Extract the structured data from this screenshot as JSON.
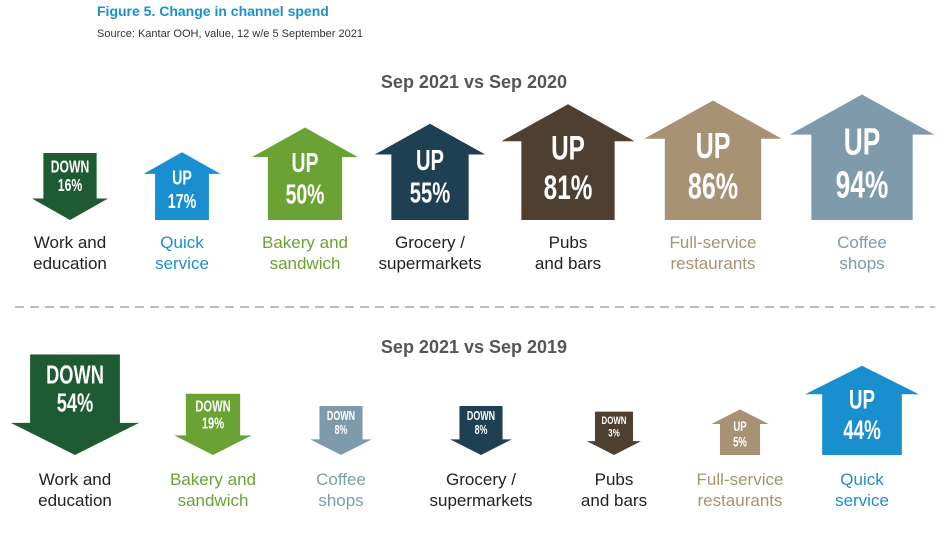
{
  "header": {
    "title": "Figure 5. Change in channel spend",
    "source": "Source: Kantar OOH, value, 12 w/e 5 September 2021"
  },
  "chart_data": [
    {
      "type": "arrow",
      "title": "Sep 2021 vs Sep 2020",
      "categories": [
        "Work and\neducation",
        "Quick\nservice",
        "Bakery and\nsandwich",
        "Grocery /\nsupermarkets",
        "Pubs\nand bars",
        "Full-service\nrestaurants",
        "Coffee\nshops"
      ],
      "directions": [
        "DOWN",
        "UP",
        "UP",
        "UP",
        "UP",
        "UP",
        "UP"
      ],
      "values": [
        16,
        17,
        50,
        55,
        81,
        86,
        94
      ],
      "value_labels": [
        "16%",
        "17%",
        "50%",
        "55%",
        "81%",
        "86%",
        "94%"
      ],
      "colors": [
        "#1e5a32",
        "#1a8fd0",
        "#6aa334",
        "#1f3f52",
        "#4f3f30",
        "#a89274",
        "#7f9aab"
      ],
      "label_colors": [
        "#222222",
        "#1a8fd0",
        "#6aa334",
        "#222222",
        "#222222",
        "#a89274",
        "#7f9aab"
      ]
    },
    {
      "type": "arrow",
      "title": "Sep 2021 vs Sep 2019",
      "categories": [
        "Work and\neducation",
        "Bakery and\nsandwich",
        "Coffee\nshops",
        "Grocery /\nsupermarkets",
        "Pubs\nand bars",
        "Full-service\nrestaurants",
        "Quick\nservice"
      ],
      "directions": [
        "DOWN",
        "DOWN",
        "DOWN",
        "DOWN",
        "DOWN",
        "UP",
        "UP"
      ],
      "values": [
        54,
        19,
        8,
        8,
        3,
        5,
        44
      ],
      "value_labels": [
        "54%",
        "19%",
        "8%",
        "8%",
        "3%",
        "5%",
        "44%"
      ],
      "colors": [
        "#1e5a32",
        "#6aa334",
        "#7f9aab",
        "#1f3f52",
        "#4f3f30",
        "#a89274",
        "#1a8fd0"
      ],
      "label_colors": [
        "#222222",
        "#6aa334",
        "#7f9aab",
        "#222222",
        "#222222",
        "#a89274",
        "#1a8fd0"
      ]
    }
  ]
}
